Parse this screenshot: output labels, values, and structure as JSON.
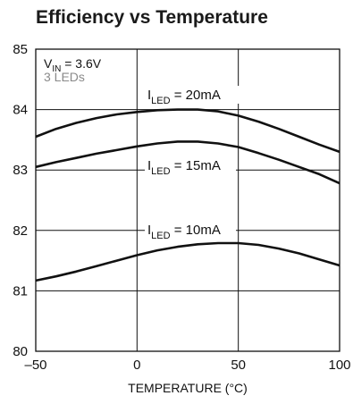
{
  "chart_data": {
    "type": "line",
    "title": "Efficiency vs Temperature",
    "xlabel": "TEMPERATURE (°C)",
    "ylabel": "",
    "xlim": [
      -50,
      100
    ],
    "ylim": [
      80,
      85
    ],
    "xticks": [
      -50,
      0,
      50,
      100
    ],
    "xtick_labels": [
      "–50",
      "0",
      "50",
      "100"
    ],
    "yticks": [
      80,
      81,
      82,
      83,
      84,
      85
    ],
    "grid": true,
    "conditions": {
      "vin_prefix": "V",
      "vin_sub": "IN",
      "vin_value": " = 3.6V",
      "leds": "3 LEDs"
    },
    "series": [
      {
        "label_prefix": "I",
        "label_sub": "LED",
        "label_value": " = 20mA",
        "x": [
          -50,
          -40,
          -30,
          -20,
          -10,
          0,
          10,
          20,
          30,
          40,
          50,
          60,
          70,
          80,
          90,
          100
        ],
        "y": [
          83.55,
          83.68,
          83.78,
          83.86,
          83.92,
          83.96,
          83.99,
          84.0,
          84.0,
          83.97,
          83.9,
          83.8,
          83.68,
          83.55,
          83.42,
          83.3
        ]
      },
      {
        "label_prefix": "I",
        "label_sub": "LED",
        "label_value": " = 15mA",
        "x": [
          -50,
          -40,
          -30,
          -20,
          -10,
          0,
          10,
          20,
          30,
          40,
          50,
          60,
          70,
          80,
          90,
          100
        ],
        "y": [
          83.05,
          83.13,
          83.2,
          83.27,
          83.33,
          83.39,
          83.44,
          83.47,
          83.47,
          83.44,
          83.38,
          83.28,
          83.17,
          83.05,
          82.93,
          82.78
        ]
      },
      {
        "label_prefix": "I",
        "label_sub": "LED",
        "label_value": " = 10mA",
        "x": [
          -50,
          -40,
          -30,
          -20,
          -10,
          0,
          10,
          20,
          30,
          40,
          50,
          60,
          70,
          80,
          90,
          100
        ],
        "y": [
          81.17,
          81.24,
          81.32,
          81.41,
          81.5,
          81.59,
          81.67,
          81.73,
          81.77,
          81.79,
          81.79,
          81.76,
          81.7,
          81.62,
          81.52,
          81.42
        ]
      }
    ]
  }
}
